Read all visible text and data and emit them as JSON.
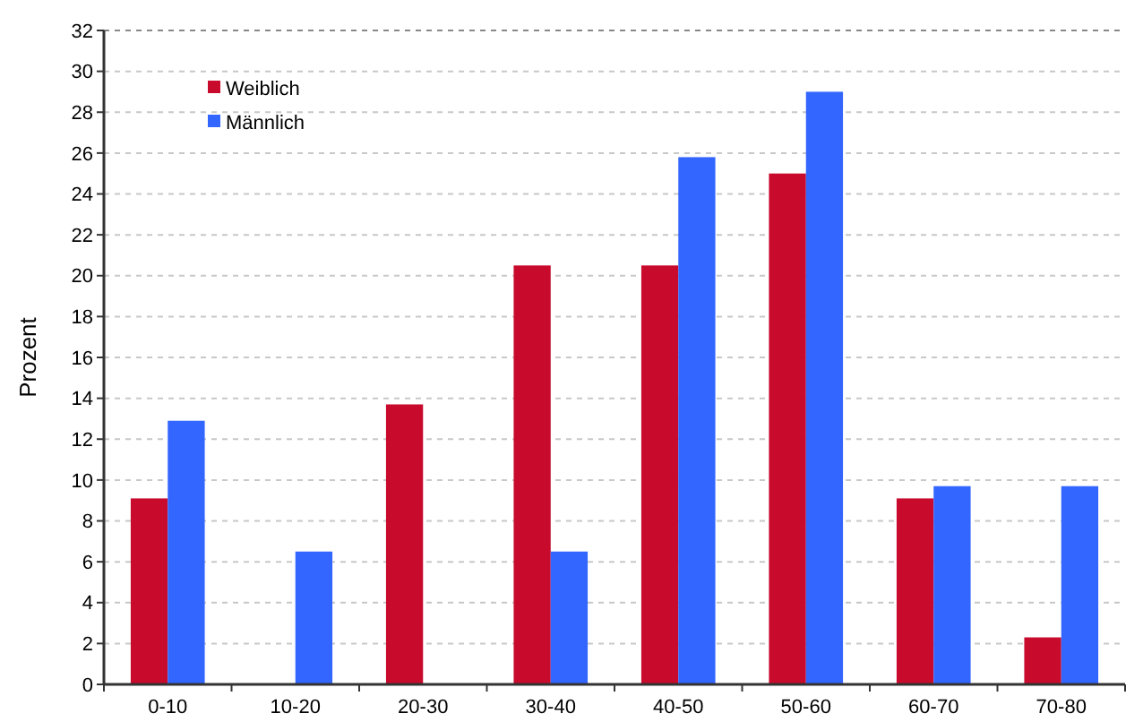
{
  "chart_data": {
    "type": "bar",
    "ylabel": "Prozent",
    "categories": [
      "0-10",
      "10-20",
      "20-30",
      "30-40",
      "40-50",
      "50-60",
      "60-70",
      "70-80"
    ],
    "series": [
      {
        "name": "Weiblich",
        "color": "#c80a2d",
        "values": [
          9.1,
          0,
          13.7,
          20.5,
          20.5,
          25,
          9.1,
          2.3
        ]
      },
      {
        "name": "Männlich",
        "color": "#3366ff",
        "values": [
          12.9,
          6.5,
          0,
          6.5,
          25.8,
          29,
          9.7,
          9.7
        ]
      }
    ],
    "ylim": [
      0,
      32
    ],
    "yticks": [
      0,
      2,
      4,
      6,
      8,
      10,
      12,
      14,
      16,
      18,
      20,
      22,
      24,
      26,
      28,
      30,
      32
    ],
    "grid": "y",
    "legend": "top left"
  }
}
